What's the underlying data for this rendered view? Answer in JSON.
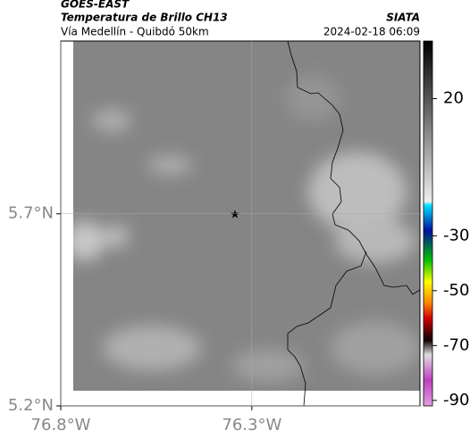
{
  "header": {
    "title": "GOES-EAST",
    "subtitle": "Temperatura de Brillo CH13",
    "source": "SIATA",
    "location": "Vía Medellín - Quibdó 50km",
    "datetime": "2024-02-18 06:09"
  },
  "map": {
    "xlim": [
      -76.8,
      -75.86
    ],
    "ylim": [
      5.2,
      6.15
    ],
    "xticks": [
      {
        "value": -76.8,
        "label": "76.8°W"
      },
      {
        "value": -76.3,
        "label": "76.3°W"
      }
    ],
    "yticks": [
      {
        "value": 5.2,
        "label": "5.2°N"
      },
      {
        "value": 5.7,
        "label": "5.7°N"
      }
    ],
    "grid": true
  },
  "colorbar": {
    "lim": [
      -92,
      41
    ],
    "ticks": [
      20,
      -30,
      -50,
      -70,
      -90
    ]
  }
}
